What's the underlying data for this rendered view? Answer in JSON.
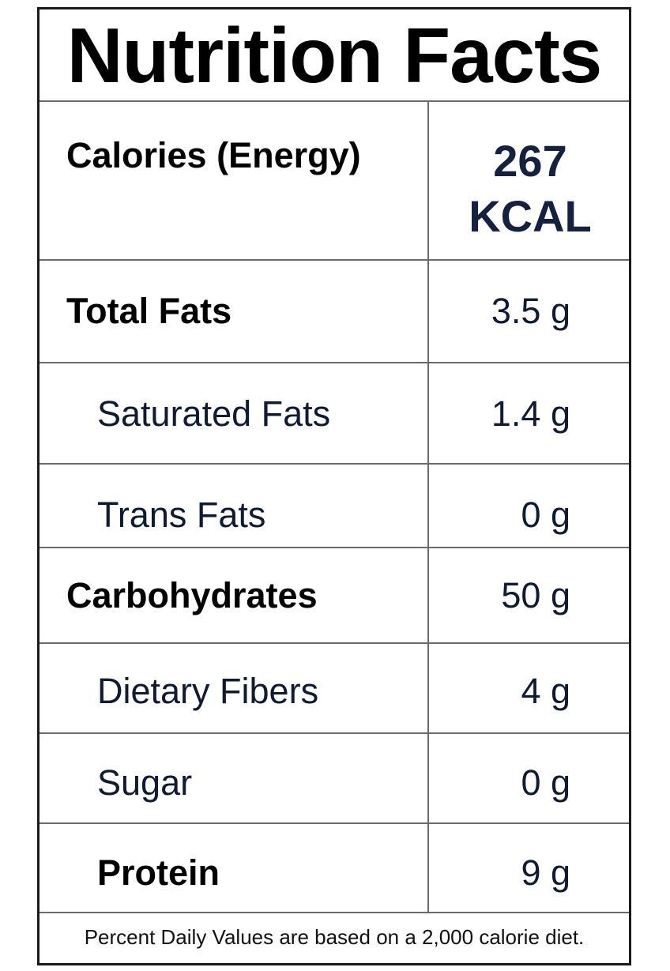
{
  "title": "Nutrition Facts",
  "calories": {
    "label": "Calories (Energy)",
    "value": "267",
    "unit": "KCAL"
  },
  "nutrients": [
    {
      "label": "Total Fats",
      "value": "3.5 g"
    },
    {
      "label": "Saturated Fats",
      "value": "1.4 g"
    },
    {
      "label": "Trans Fats",
      "value": "0 g"
    },
    {
      "label": "Carbohydrates",
      "value": "50 g"
    },
    {
      "label": "Dietary Fibers",
      "value": "4 g"
    },
    {
      "label": "Sugar",
      "value": "0 g"
    },
    {
      "label": "Protein",
      "value": "9 g"
    }
  ],
  "footnote": "Percent Daily Values are based on a 2,000 calorie diet."
}
